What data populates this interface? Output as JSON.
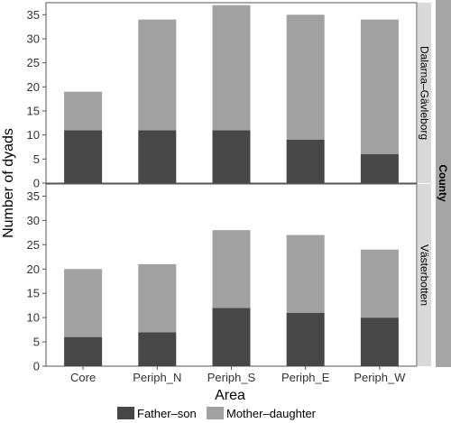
{
  "chart_data": {
    "type": "bar",
    "stacked": true,
    "categories": [
      "Core",
      "Periph_N",
      "Periph_S",
      "Periph_E",
      "Periph_W"
    ],
    "xlabel": "Area",
    "ylabel": "Number of dyads",
    "facet_label": "County",
    "ylim": [
      0,
      37.5
    ],
    "yticks": [
      0,
      5,
      10,
      15,
      20,
      25,
      30,
      35
    ],
    "grid": false,
    "legend_position": "bottom",
    "colors": {
      "Father–son": "#474747",
      "Mother–daughter": "#a1a1a1",
      "strip": "#d9d9d9",
      "outer_strip": "#a6a6a6"
    },
    "panels": [
      {
        "label": "Dalarna–Gävleborg",
        "series": [
          {
            "name": "Father–son",
            "values": [
              11,
              11,
              11,
              9,
              6
            ]
          },
          {
            "name": "Mother–daughter",
            "values": [
              8,
              23,
              26,
              26,
              28
            ]
          }
        ]
      },
      {
        "label": "Västerbotten",
        "series": [
          {
            "name": "Father–son",
            "values": [
              6,
              7,
              12,
              11,
              10
            ]
          },
          {
            "name": "Mother–daughter",
            "values": [
              14,
              14,
              16,
              16,
              14
            ]
          }
        ]
      }
    ]
  }
}
